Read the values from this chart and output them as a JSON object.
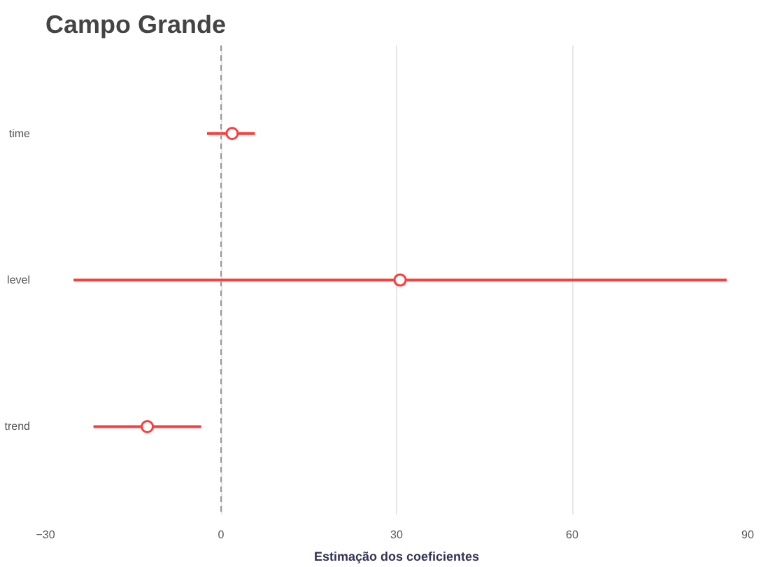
{
  "chart_data": {
    "type": "scatter",
    "title": "Campo Grande",
    "xlabel": "Estimação dos coeficientes",
    "orientation": "horizontal",
    "categories": [
      "time",
      "level",
      "trend"
    ],
    "values": [
      1.9,
      30.6,
      -12.6
    ],
    "errors": [
      [
        -2.4,
        5.8
      ],
      [
        -25.2,
        86.4
      ],
      [
        -21.8,
        -3.4
      ]
    ],
    "color": "#ff3b3b",
    "marker": "circle",
    "xlim": [
      -30,
      90
    ],
    "xticks": [
      -30,
      0,
      30,
      60,
      90
    ],
    "grid": "x",
    "ref_lines": [
      {
        "axis": "x",
        "value": 0,
        "label": null,
        "line_style": "dashed",
        "color": "#999999"
      }
    ]
  }
}
